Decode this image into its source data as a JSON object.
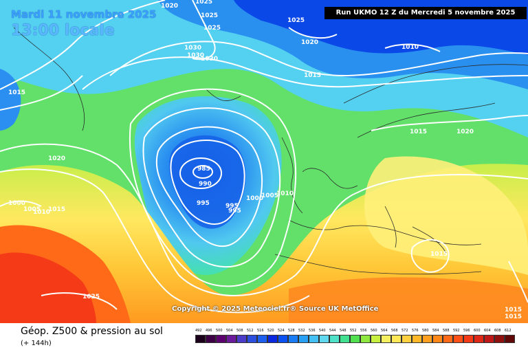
{
  "header": {
    "date": "Mardi 11 novembre 2025",
    "time": "13:00 locale",
    "run": "Run UKMO 12 Z du Mercredi 5 novembre 2025"
  },
  "map": {
    "copyright": "Copyright © 2025 Meteociel.fr® Source UK MetOffice",
    "pressure_labels": [
      {
        "value": "1020"
      },
      {
        "value": "1025"
      },
      {
        "value": "1025"
      },
      {
        "value": "1025"
      },
      {
        "value": "1025"
      },
      {
        "value": "1020"
      },
      {
        "value": "1010"
      },
      {
        "value": "1030"
      },
      {
        "value": "1030"
      },
      {
        "value": "1030"
      },
      {
        "value": "1015"
      },
      {
        "value": "1015"
      },
      {
        "value": "1015"
      },
      {
        "value": "1020"
      },
      {
        "value": "1020"
      },
      {
        "value": "985"
      },
      {
        "value": "990"
      },
      {
        "value": "995"
      },
      {
        "value": "995"
      },
      {
        "value": "995"
      },
      {
        "value": "1000"
      },
      {
        "value": "1005"
      },
      {
        "value": "1010"
      },
      {
        "value": "1000"
      },
      {
        "value": "1005"
      },
      {
        "value": "1010"
      },
      {
        "value": "1015"
      },
      {
        "value": "1025"
      },
      {
        "value": "1015"
      },
      {
        "value": "1015"
      },
      {
        "value": "1015"
      }
    ]
  },
  "legend": {
    "title": "Géop. Z500 & pression au sol",
    "subtitle": "(+ 144h)",
    "levels": [
      "492",
      "496",
      "500",
      "504",
      "508",
      "512",
      "516",
      "520",
      "524",
      "528",
      "532",
      "536",
      "540",
      "544",
      "548",
      "552",
      "556",
      "560",
      "564",
      "568",
      "572",
      "576",
      "580",
      "584",
      "588",
      "592",
      "596",
      "600",
      "604",
      "608",
      "612"
    ],
    "colors": [
      "#1a001a",
      "#3d0045",
      "#5c0070",
      "#6a1a9a",
      "#4b3cc9",
      "#2d4fe0",
      "#1f5ff0",
      "#0a28e0",
      "#0b50f0",
      "#1a7cf5",
      "#2aa0f5",
      "#45c0f5",
      "#60d8f0",
      "#4fe0c8",
      "#40e090",
      "#50e050",
      "#8ee840",
      "#c8f040",
      "#f5f060",
      "#ffe858",
      "#ffd040",
      "#ffb828",
      "#ffa020",
      "#ff8818",
      "#ff6a18",
      "#ff5018",
      "#f53a18",
      "#e02818",
      "#c01818",
      "#901010",
      "#600808"
    ]
  }
}
